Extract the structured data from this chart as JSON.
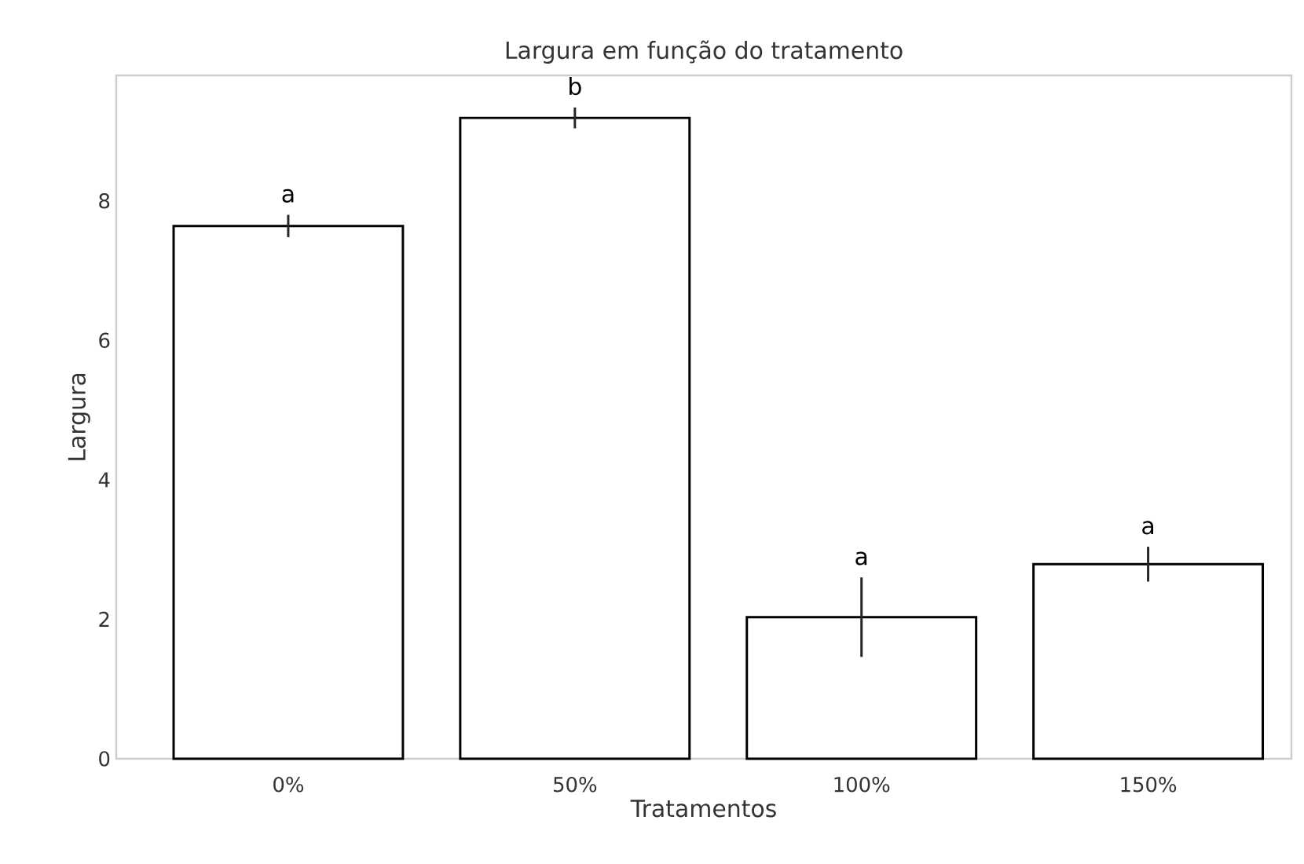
{
  "chart_data": {
    "type": "bar",
    "title": "Largura em função do tratamento",
    "xlabel": "Tratamentos",
    "ylabel": "Largura",
    "categories": [
      "0%",
      "50%",
      "100%",
      "150%"
    ],
    "values": [
      7.64,
      9.19,
      2.03,
      2.79
    ],
    "errors": [
      0.16,
      0.15,
      0.57,
      0.25
    ],
    "color": "#ffffff",
    "ylim": [
      0,
      9.8
    ],
    "yticks": [
      0,
      2,
      4,
      6,
      8
    ],
    "grid": false,
    "annotations": [
      {
        "text": "a",
        "x": "0%",
        "y": 7.8
      },
      {
        "text": "b",
        "x": "50%",
        "y": 9.34
      },
      {
        "text": "a",
        "x": "100%",
        "y": 2.6
      },
      {
        "text": "a",
        "x": "150%",
        "y": 3.04
      }
    ]
  }
}
